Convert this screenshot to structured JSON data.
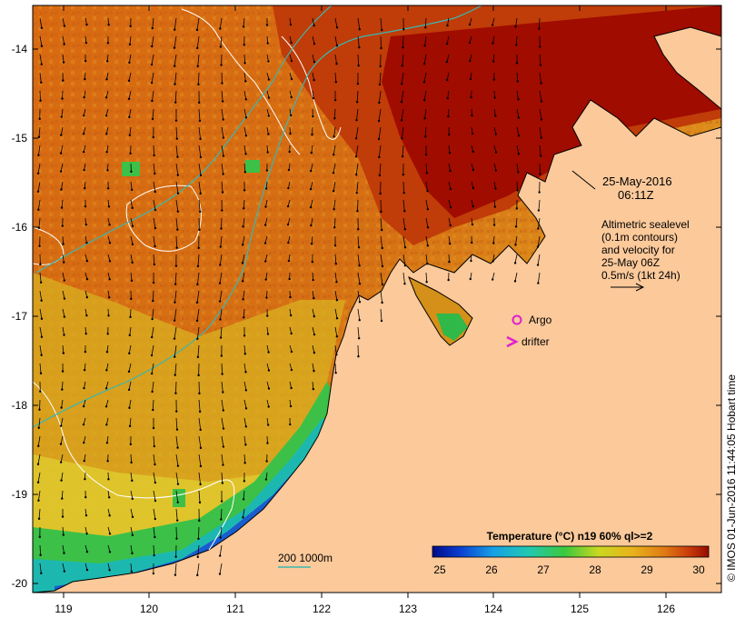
{
  "map": {
    "x_ticks": [
      "119",
      "120",
      "121",
      "122",
      "123",
      "124",
      "125",
      "126"
    ],
    "y_ticks": [
      "-14",
      "-15",
      "-16",
      "-17",
      "-18",
      "-19",
      "-20"
    ],
    "colors": {
      "land": "#fbc99a",
      "sea_warm": "#d05a0c",
      "sea_hot": "#a40e00",
      "sea_mid": "#e0801a",
      "sea_yellow": "#e0c020",
      "sea_green": "#2fbf4a",
      "sea_cyan": "#17b6b6",
      "sea_blue": "#1560d8",
      "contour_white": "#ffffff",
      "isobath": "#3bb7b0",
      "markers": "#e020d0"
    }
  },
  "annotations": {
    "date": "25-May-2016",
    "time": "06:11Z",
    "alt_line1": "Altimetric sealevel",
    "alt_line2": "(0.1m contours)",
    "alt_line3": "and velocity for",
    "alt_line4": "25-May 06Z",
    "alt_line5": "0.5m/s (1kt 24h)",
    "argo": "Argo",
    "drifter": "drifter",
    "isobath_label": "200  1000m"
  },
  "colorbar": {
    "title": "Temperature (°C) n19 60% ql>=2",
    "min": 25,
    "max": 30,
    "labels": [
      "25",
      "26",
      "27",
      "28",
      "29",
      "30"
    ],
    "stops": [
      "#000a8a",
      "#0a3fd0",
      "#16a0e6",
      "#22c8b0",
      "#3cc83c",
      "#c8d820",
      "#e8b41c",
      "#e07a14",
      "#c83a0a",
      "#960a00"
    ]
  },
  "credit": "© IMOS 01-Jun-2016 11:44:05 Hobart time"
}
